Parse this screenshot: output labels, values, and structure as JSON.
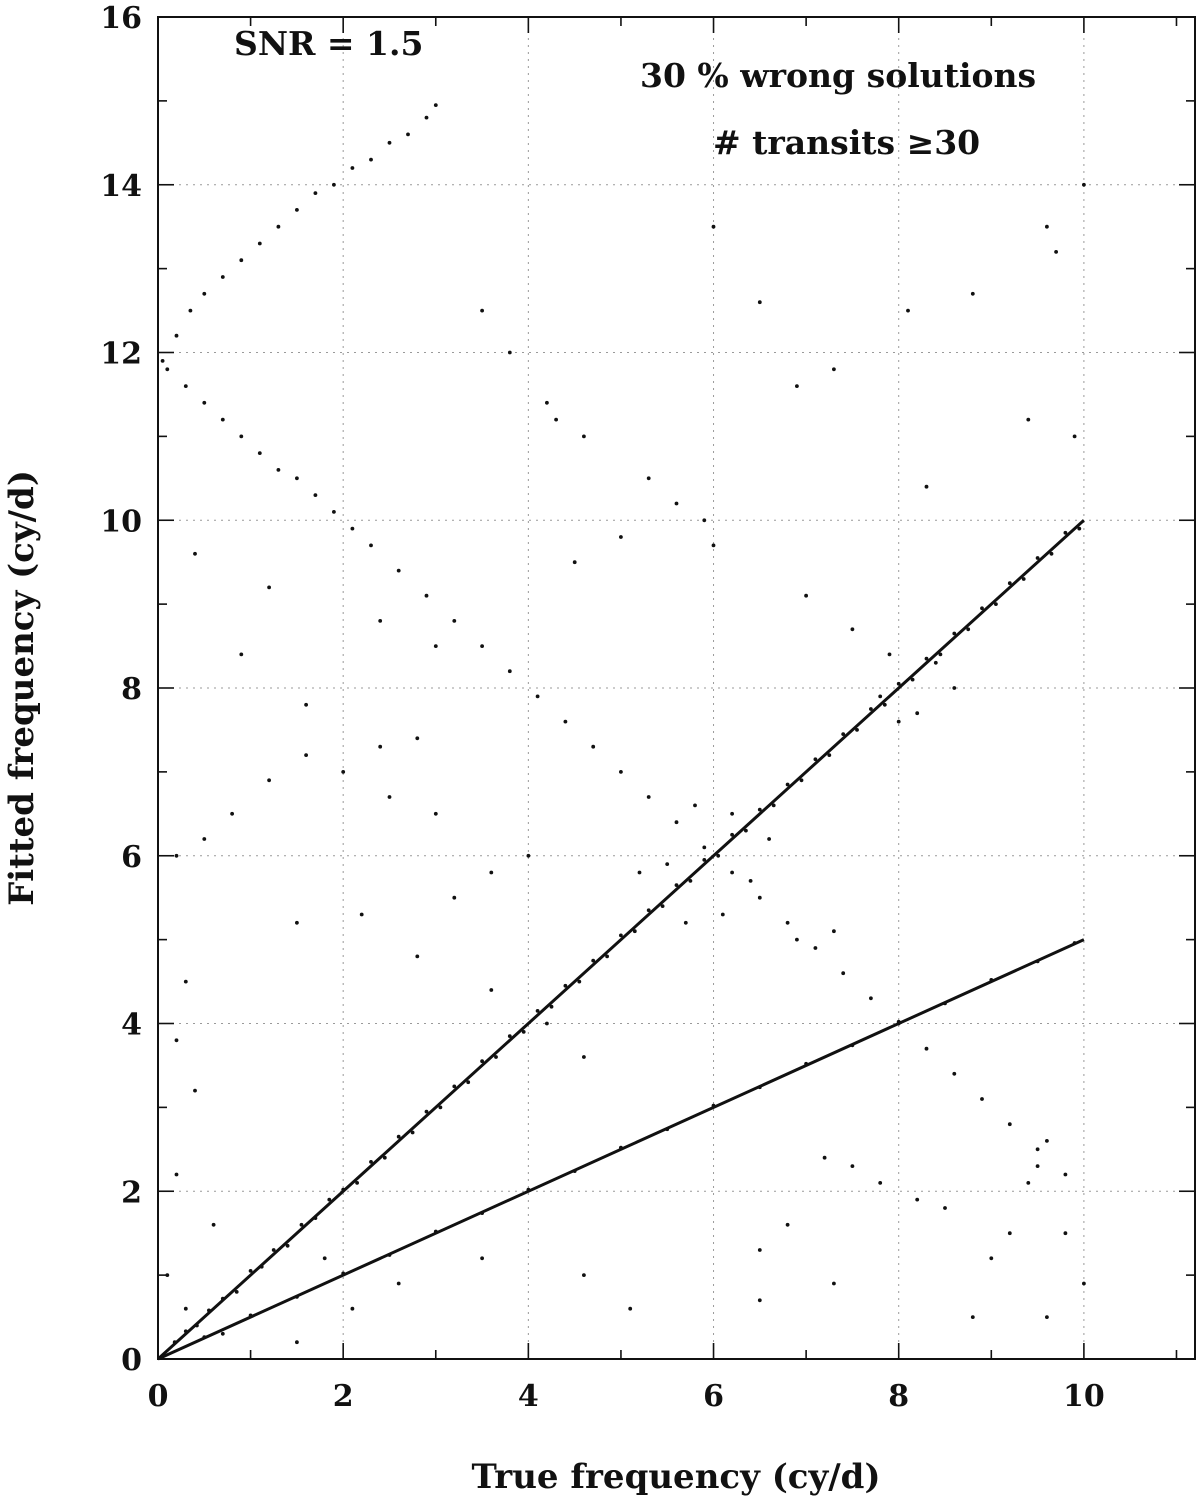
{
  "chart_data": {
    "type": "scatter",
    "xlabel": "True frequency (cy/d)",
    "ylabel": "Fitted frequency (cy/d)",
    "xlim": [
      0,
      11.2
    ],
    "ylim": [
      0,
      16
    ],
    "xticks": [
      0,
      2,
      4,
      6,
      8,
      10
    ],
    "yticks": [
      0,
      2,
      4,
      6,
      8,
      10,
      12,
      14,
      16
    ],
    "x_minor_step": 1,
    "y_minor_step": 1,
    "grid": true,
    "grid_style": "dotted",
    "annotations": {
      "snr": "SNR = 1.5",
      "wrong": "30 % wrong solutions",
      "transits": "# transits ≥30"
    },
    "lines": [
      {
        "x": [
          0,
          10
        ],
        "y": [
          0,
          10
        ]
      },
      {
        "x": [
          0,
          10
        ],
        "y": [
          0,
          5
        ]
      }
    ],
    "series": [
      {
        "values": [
          [
            0.05,
            0.03
          ],
          [
            0.18,
            0.2
          ],
          [
            0.3,
            0.33
          ],
          [
            0.42,
            0.4
          ],
          [
            0.55,
            0.58
          ],
          [
            0.7,
            0.72
          ],
          [
            0.85,
            0.8
          ],
          [
            1.0,
            1.05
          ],
          [
            1.12,
            1.1
          ],
          [
            1.25,
            1.3
          ],
          [
            1.4,
            1.35
          ],
          [
            1.55,
            1.6
          ],
          [
            1.7,
            1.68
          ],
          [
            1.85,
            1.9
          ],
          [
            2.0,
            2.02
          ],
          [
            2.15,
            2.1
          ],
          [
            2.3,
            2.35
          ],
          [
            2.45,
            2.4
          ],
          [
            2.6,
            2.65
          ],
          [
            2.75,
            2.7
          ],
          [
            2.9,
            2.95
          ],
          [
            3.05,
            3.0
          ],
          [
            3.2,
            3.25
          ],
          [
            3.35,
            3.3
          ],
          [
            3.5,
            3.55
          ],
          [
            3.65,
            3.6
          ],
          [
            3.8,
            3.85
          ],
          [
            3.95,
            3.9
          ],
          [
            4.1,
            4.15
          ],
          [
            4.25,
            4.2
          ],
          [
            4.4,
            4.45
          ],
          [
            4.55,
            4.5
          ],
          [
            4.7,
            4.75
          ],
          [
            4.85,
            4.8
          ],
          [
            5.0,
            5.05
          ],
          [
            5.15,
            5.1
          ],
          [
            5.3,
            5.35
          ],
          [
            5.45,
            5.4
          ],
          [
            5.6,
            5.65
          ],
          [
            5.75,
            5.7
          ],
          [
            5.9,
            5.95
          ],
          [
            6.05,
            6.0
          ],
          [
            6.2,
            6.25
          ],
          [
            6.35,
            6.3
          ],
          [
            6.5,
            6.55
          ],
          [
            6.65,
            6.6
          ],
          [
            6.8,
            6.85
          ],
          [
            6.95,
            6.9
          ],
          [
            7.1,
            7.15
          ],
          [
            7.25,
            7.2
          ],
          [
            7.4,
            7.45
          ],
          [
            7.55,
            7.5
          ],
          [
            7.7,
            7.75
          ],
          [
            7.85,
            7.8
          ],
          [
            8.0,
            8.05
          ],
          [
            8.15,
            8.1
          ],
          [
            8.3,
            8.35
          ],
          [
            8.45,
            8.4
          ],
          [
            8.6,
            8.65
          ],
          [
            8.75,
            8.7
          ],
          [
            8.9,
            8.95
          ],
          [
            9.05,
            9.0
          ],
          [
            9.2,
            9.25
          ],
          [
            9.35,
            9.3
          ],
          [
            9.5,
            9.55
          ],
          [
            9.65,
            9.6
          ],
          [
            9.8,
            9.85
          ],
          [
            9.95,
            9.9
          ],
          [
            0.5,
            0.26
          ],
          [
            1.0,
            0.52
          ],
          [
            1.5,
            0.74
          ],
          [
            2.0,
            1.02
          ],
          [
            2.5,
            1.24
          ],
          [
            3.0,
            1.52
          ],
          [
            3.5,
            1.74
          ],
          [
            4.0,
            2.02
          ],
          [
            4.5,
            2.24
          ],
          [
            5.0,
            2.52
          ],
          [
            5.5,
            2.74
          ],
          [
            6.0,
            3.02
          ],
          [
            6.5,
            3.24
          ],
          [
            7.0,
            3.52
          ],
          [
            7.5,
            3.74
          ],
          [
            8.0,
            4.02
          ],
          [
            8.5,
            4.24
          ],
          [
            9.0,
            4.52
          ],
          [
            9.5,
            4.74
          ],
          [
            9.9,
            4.96
          ],
          [
            0.05,
            11.9
          ],
          [
            0.2,
            12.2
          ],
          [
            0.35,
            12.5
          ],
          [
            0.5,
            12.7
          ],
          [
            0.7,
            12.9
          ],
          [
            0.9,
            13.1
          ],
          [
            1.1,
            13.3
          ],
          [
            1.3,
            13.5
          ],
          [
            1.5,
            13.7
          ],
          [
            1.7,
            13.9
          ],
          [
            1.9,
            14.0
          ],
          [
            2.1,
            14.2
          ],
          [
            2.3,
            14.3
          ],
          [
            2.5,
            14.5
          ],
          [
            2.7,
            14.6
          ],
          [
            2.9,
            14.8
          ],
          [
            3.0,
            14.95
          ],
          [
            0.1,
            11.8
          ],
          [
            0.3,
            11.6
          ],
          [
            0.5,
            11.4
          ],
          [
            0.7,
            11.2
          ],
          [
            0.9,
            11.0
          ],
          [
            1.1,
            10.8
          ],
          [
            1.3,
            10.6
          ],
          [
            1.5,
            10.5
          ],
          [
            1.7,
            10.3
          ],
          [
            1.9,
            10.1
          ],
          [
            2.1,
            9.9
          ],
          [
            2.3,
            9.7
          ],
          [
            2.6,
            9.4
          ],
          [
            2.9,
            9.1
          ],
          [
            3.2,
            8.8
          ],
          [
            3.5,
            8.5
          ],
          [
            3.8,
            8.2
          ],
          [
            4.1,
            7.9
          ],
          [
            4.4,
            7.6
          ],
          [
            4.7,
            7.3
          ],
          [
            5.0,
            7.0
          ],
          [
            5.3,
            6.7
          ],
          [
            5.6,
            6.4
          ],
          [
            5.9,
            6.1
          ],
          [
            6.2,
            5.8
          ],
          [
            6.5,
            5.5
          ],
          [
            6.8,
            5.2
          ],
          [
            7.1,
            4.9
          ],
          [
            7.4,
            4.6
          ],
          [
            7.7,
            4.3
          ],
          [
            8.0,
            4.0
          ],
          [
            8.3,
            3.7
          ],
          [
            8.6,
            3.4
          ],
          [
            8.9,
            3.1
          ],
          [
            9.2,
            2.8
          ],
          [
            9.5,
            2.5
          ],
          [
            9.8,
            2.2
          ],
          [
            0.2,
            6.0
          ],
          [
            0.5,
            6.2
          ],
          [
            0.8,
            6.5
          ],
          [
            1.2,
            6.9
          ],
          [
            1.6,
            7.2
          ],
          [
            2.0,
            7.0
          ],
          [
            2.4,
            7.3
          ],
          [
            2.8,
            7.4
          ],
          [
            2.2,
            5.3
          ],
          [
            1.5,
            5.2
          ],
          [
            3.0,
            6.5
          ],
          [
            2.5,
            6.7
          ],
          [
            5.3,
            10.5
          ],
          [
            5.6,
            10.2
          ],
          [
            5.9,
            10.0
          ],
          [
            6.0,
            9.7
          ],
          [
            4.3,
            11.2
          ],
          [
            4.6,
            11.0
          ],
          [
            7.5,
            8.7
          ],
          [
            7.0,
            9.1
          ],
          [
            9.5,
            2.3
          ],
          [
            9.6,
            2.6
          ],
          [
            9.4,
            2.1
          ],
          [
            9.2,
            1.5
          ],
          [
            9.0,
            1.2
          ],
          [
            8.5,
            1.8
          ],
          [
            8.2,
            1.9
          ],
          [
            7.8,
            2.1
          ],
          [
            7.5,
            2.3
          ],
          [
            7.2,
            2.4
          ],
          [
            6.8,
            1.6
          ],
          [
            6.5,
            1.3
          ],
          [
            9.6,
            13.5
          ],
          [
            9.7,
            13.2
          ],
          [
            8.8,
            12.7
          ],
          [
            10.0,
            14.0
          ],
          [
            6.0,
            13.5
          ],
          [
            3.5,
            12.5
          ],
          [
            3.8,
            12.0
          ],
          [
            4.2,
            11.4
          ],
          [
            0.3,
            4.5
          ],
          [
            0.2,
            3.8
          ],
          [
            0.4,
            3.2
          ],
          [
            0.2,
            2.2
          ],
          [
            0.6,
            1.6
          ],
          [
            0.1,
            1.0
          ],
          [
            0.3,
            0.6
          ],
          [
            0.7,
            0.3
          ],
          [
            1.5,
            0.2
          ],
          [
            2.1,
            0.6
          ],
          [
            2.6,
            0.9
          ],
          [
            1.8,
            1.2
          ],
          [
            3.5,
            1.2
          ],
          [
            4.6,
            1.0
          ],
          [
            5.1,
            0.6
          ],
          [
            6.5,
            0.7
          ],
          [
            7.3,
            0.9
          ],
          [
            10.0,
            0.9
          ],
          [
            9.8,
            1.5
          ],
          [
            9.6,
            0.5
          ],
          [
            8.8,
            0.5
          ],
          [
            4.2,
            4.0
          ],
          [
            4.6,
            3.6
          ],
          [
            3.6,
            4.4
          ],
          [
            5.2,
            5.8
          ],
          [
            5.5,
            5.9
          ],
          [
            6.2,
            6.5
          ],
          [
            6.4,
            5.7
          ],
          [
            5.8,
            6.6
          ],
          [
            6.1,
            5.3
          ],
          [
            5.7,
            5.2
          ],
          [
            6.6,
            6.2
          ],
          [
            6.9,
            5.0
          ],
          [
            7.3,
            5.1
          ],
          [
            7.8,
            7.9
          ],
          [
            8.2,
            7.7
          ],
          [
            8.4,
            8.3
          ],
          [
            8.0,
            7.6
          ],
          [
            7.9,
            8.4
          ],
          [
            8.6,
            8.0
          ],
          [
            3.2,
            5.5
          ],
          [
            3.6,
            5.8
          ],
          [
            2.8,
            4.8
          ],
          [
            4.0,
            6.0
          ],
          [
            3.0,
            8.5
          ],
          [
            2.4,
            8.8
          ],
          [
            1.2,
            9.2
          ],
          [
            0.4,
            9.6
          ],
          [
            0.9,
            8.4
          ],
          [
            1.6,
            7.8
          ],
          [
            4.5,
            9.5
          ],
          [
            5.0,
            9.8
          ],
          [
            6.9,
            11.6
          ],
          [
            7.3,
            11.8
          ],
          [
            8.3,
            10.4
          ],
          [
            9.4,
            11.2
          ],
          [
            9.9,
            11.0
          ],
          [
            8.1,
            12.5
          ],
          [
            6.5,
            12.6
          ]
        ]
      }
    ]
  }
}
